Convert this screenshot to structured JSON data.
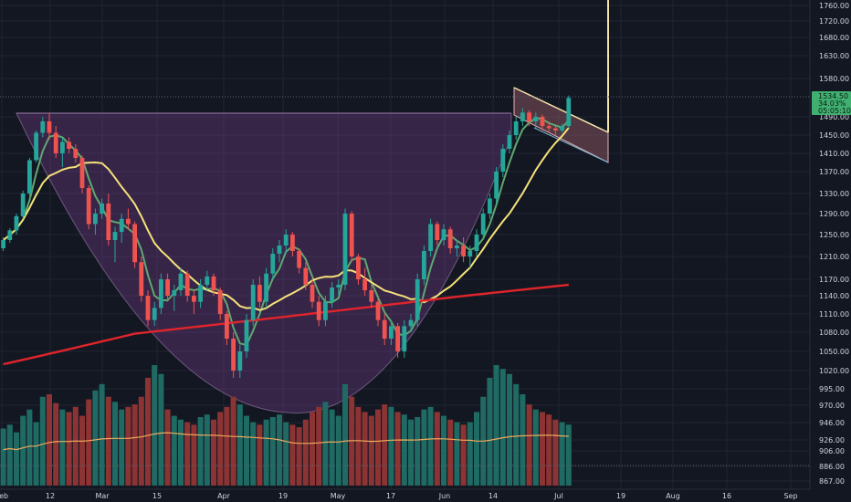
{
  "chart_data": {
    "type": "candlestick",
    "title": "",
    "xlabel": "",
    "ylabel": "",
    "ylim": [
      855,
      1775
    ],
    "x_ticks": [
      "Feb",
      "12",
      "Mar",
      "15",
      "Apr",
      "19",
      "May",
      "17",
      "Jun",
      "14",
      "Jul",
      "19",
      "Aug",
      "16",
      "Sep"
    ],
    "y_ticks": [
      "1760.00",
      "1720.00",
      "1680.00",
      "1630.00",
      "1580.00",
      "1490.00",
      "1450.00",
      "1410.00",
      "1370.00",
      "1330.00",
      "1290.00",
      "1250.00",
      "1210.00",
      "1170.00",
      "1140.00",
      "1110.00",
      "1080.00",
      "1050.00",
      "1020.00",
      "995.00",
      "970.00",
      "946.00",
      "926.00",
      "906.00",
      "886.00",
      "867.00"
    ],
    "grid": true,
    "colors": {
      "background": "#131722",
      "grid": "#1f2433",
      "up": "#26a69a",
      "down": "#ef5350",
      "up_volume": "#1f6b64",
      "down_volume": "#8c3434",
      "ma_short": "#5fa86f",
      "ma_medium": "#f5e27a",
      "ma_long": "#e0242b",
      "volume_ma": "#f0a85a",
      "cup_fill": "#7a3e8f",
      "flag_fill": "#c4737e",
      "price_tag": "#3fb070"
    },
    "last_price": {
      "value": 1534.5,
      "lines": [
        "1534.50",
        "34.03%",
        "05:05:10"
      ]
    },
    "candles": [
      [
        1225,
        1245,
        1220,
        1240
      ],
      [
        1240,
        1262,
        1235,
        1258
      ],
      [
        1258,
        1290,
        1250,
        1285
      ],
      [
        1285,
        1335,
        1280,
        1330
      ],
      [
        1330,
        1400,
        1325,
        1395
      ],
      [
        1395,
        1460,
        1390,
        1455
      ],
      [
        1455,
        1490,
        1445,
        1480
      ],
      [
        1480,
        1500,
        1440,
        1455
      ],
      [
        1455,
        1470,
        1400,
        1410
      ],
      [
        1410,
        1445,
        1380,
        1435
      ],
      [
        1435,
        1445,
        1410,
        1420
      ],
      [
        1420,
        1430,
        1390,
        1400
      ],
      [
        1400,
        1405,
        1330,
        1340
      ],
      [
        1340,
        1345,
        1260,
        1270
      ],
      [
        1270,
        1300,
        1250,
        1290
      ],
      [
        1290,
        1320,
        1280,
        1310
      ],
      [
        1310,
        1330,
        1230,
        1240
      ],
      [
        1240,
        1265,
        1200,
        1255
      ],
      [
        1255,
        1290,
        1235,
        1280
      ],
      [
        1280,
        1300,
        1260,
        1270
      ],
      [
        1270,
        1275,
        1190,
        1200
      ],
      [
        1200,
        1210,
        1130,
        1140
      ],
      [
        1140,
        1150,
        1090,
        1100
      ],
      [
        1100,
        1130,
        1090,
        1120
      ],
      [
        1120,
        1180,
        1110,
        1170
      ],
      [
        1170,
        1180,
        1130,
        1140
      ],
      [
        1140,
        1160,
        1115,
        1150
      ],
      [
        1150,
        1190,
        1140,
        1180
      ],
      [
        1180,
        1185,
        1130,
        1140
      ],
      [
        1140,
        1150,
        1110,
        1130
      ],
      [
        1130,
        1170,
        1120,
        1160
      ],
      [
        1160,
        1185,
        1150,
        1175
      ],
      [
        1175,
        1180,
        1140,
        1150
      ],
      [
        1150,
        1155,
        1100,
        1110
      ],
      [
        1110,
        1115,
        1060,
        1070
      ],
      [
        1070,
        1080,
        1010,
        1020
      ],
      [
        1020,
        1060,
        1010,
        1050
      ],
      [
        1050,
        1110,
        1040,
        1100
      ],
      [
        1100,
        1170,
        1090,
        1160
      ],
      [
        1160,
        1175,
        1120,
        1130
      ],
      [
        1130,
        1190,
        1120,
        1180
      ],
      [
        1180,
        1225,
        1170,
        1215
      ],
      [
        1215,
        1240,
        1200,
        1230
      ],
      [
        1230,
        1260,
        1215,
        1250
      ],
      [
        1250,
        1255,
        1210,
        1220
      ],
      [
        1220,
        1225,
        1180,
        1190
      ],
      [
        1190,
        1200,
        1150,
        1160
      ],
      [
        1160,
        1170,
        1120,
        1130
      ],
      [
        1130,
        1140,
        1090,
        1100
      ],
      [
        1100,
        1140,
        1090,
        1130
      ],
      [
        1130,
        1165,
        1120,
        1155
      ],
      [
        1155,
        1170,
        1140,
        1160
      ],
      [
        1160,
        1300,
        1150,
        1290
      ],
      [
        1290,
        1295,
        1200,
        1210
      ],
      [
        1210,
        1215,
        1160,
        1170
      ],
      [
        1170,
        1190,
        1140,
        1150
      ],
      [
        1150,
        1160,
        1120,
        1130
      ],
      [
        1130,
        1135,
        1090,
        1100
      ],
      [
        1100,
        1110,
        1060,
        1070
      ],
      [
        1070,
        1100,
        1060,
        1090
      ],
      [
        1090,
        1095,
        1040,
        1050
      ],
      [
        1050,
        1100,
        1040,
        1090
      ],
      [
        1090,
        1110,
        1080,
        1100
      ],
      [
        1100,
        1180,
        1090,
        1170
      ],
      [
        1170,
        1230,
        1160,
        1220
      ],
      [
        1220,
        1280,
        1210,
        1270
      ],
      [
        1270,
        1275,
        1230,
        1240
      ],
      [
        1240,
        1270,
        1230,
        1260
      ],
      [
        1260,
        1265,
        1215,
        1225
      ],
      [
        1225,
        1240,
        1210,
        1230
      ],
      [
        1230,
        1245,
        1200,
        1210
      ],
      [
        1210,
        1230,
        1190,
        1220
      ],
      [
        1220,
        1260,
        1210,
        1250
      ],
      [
        1250,
        1300,
        1240,
        1290
      ],
      [
        1290,
        1330,
        1280,
        1320
      ],
      [
        1320,
        1380,
        1310,
        1370
      ],
      [
        1370,
        1430,
        1360,
        1420
      ],
      [
        1420,
        1460,
        1410,
        1450
      ],
      [
        1450,
        1490,
        1440,
        1480
      ],
      [
        1480,
        1510,
        1470,
        1500
      ],
      [
        1500,
        1505,
        1470,
        1480
      ],
      [
        1480,
        1500,
        1465,
        1490
      ],
      [
        1490,
        1495,
        1460,
        1470
      ],
      [
        1470,
        1480,
        1455,
        1465
      ],
      [
        1465,
        1470,
        1450,
        1460
      ],
      [
        1460,
        1475,
        1455,
        1470
      ],
      [
        1470,
        1540,
        1465,
        1534.5
      ]
    ],
    "volume": {
      "values": [
        45,
        48,
        42,
        55,
        60,
        50,
        70,
        72,
        65,
        60,
        58,
        62,
        55,
        68,
        75,
        80,
        70,
        66,
        60,
        62,
        64,
        70,
        85,
        95,
        88,
        60,
        55,
        52,
        50,
        48,
        54,
        56,
        52,
        58,
        62,
        70,
        64,
        55,
        50,
        48,
        52,
        54,
        56,
        50,
        48,
        46,
        52,
        58,
        62,
        66,
        60,
        55,
        80,
        70,
        62,
        58,
        55,
        60,
        64,
        62,
        58,
        56,
        52,
        54,
        60,
        62,
        58,
        55,
        52,
        50,
        48,
        50,
        58,
        70,
        85,
        95,
        92,
        88,
        80,
        72,
        64,
        60,
        58,
        56,
        52,
        50,
        48
      ],
      "direction": [
        "u",
        "u",
        "u",
        "u",
        "u",
        "u",
        "u",
        "d",
        "d",
        "u",
        "d",
        "d",
        "d",
        "d",
        "u",
        "u",
        "d",
        "u",
        "u",
        "d",
        "d",
        "d",
        "d",
        "u",
        "u",
        "d",
        "u",
        "u",
        "d",
        "d",
        "u",
        "u",
        "d",
        "d",
        "d",
        "d",
        "u",
        "u",
        "u",
        "d",
        "u",
        "u",
        "u",
        "u",
        "d",
        "d",
        "d",
        "d",
        "d",
        "u",
        "u",
        "u",
        "u",
        "d",
        "d",
        "d",
        "d",
        "d",
        "d",
        "u",
        "d",
        "u",
        "u",
        "u",
        "u",
        "u",
        "d",
        "u",
        "d",
        "u",
        "d",
        "u",
        "u",
        "u",
        "u",
        "u",
        "u",
        "u",
        "u",
        "u",
        "d",
        "u",
        "d",
        "d",
        "d",
        "u",
        "u"
      ]
    }
  }
}
